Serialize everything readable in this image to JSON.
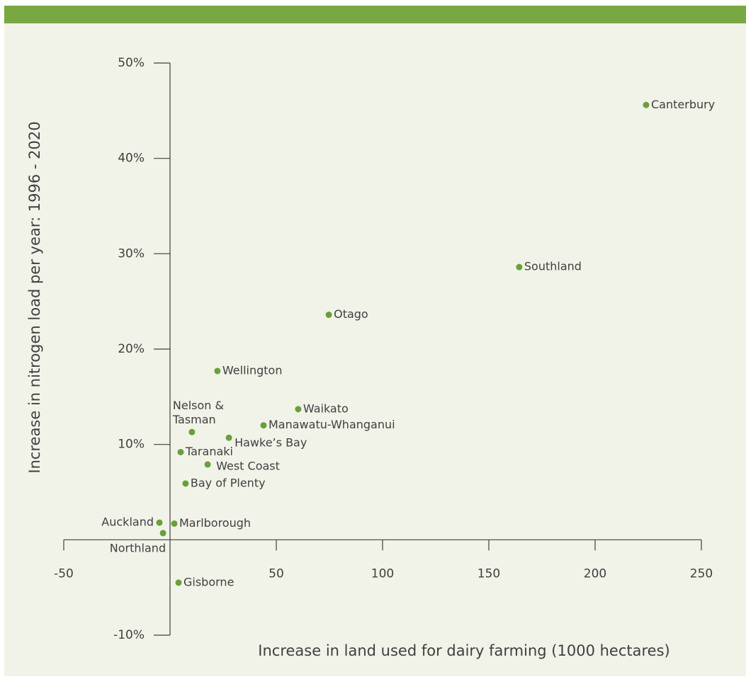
{
  "chart_data": {
    "type": "scatter",
    "x_label": "Increase in land used for dairy farming (1000 hectares)",
    "y_label": "Increase in nitrogen load per year: 1996 - 2020",
    "xlim": [
      -50,
      250
    ],
    "xticks": [
      -50,
      50,
      100,
      150,
      200,
      250
    ],
    "ylim": [
      -10,
      50
    ],
    "yticks": [
      {
        "value": -10,
        "label": "-10%"
      },
      {
        "value": 10,
        "label": "10%"
      },
      {
        "value": 20,
        "label": "20%"
      },
      {
        "value": 30,
        "label": "30%"
      },
      {
        "value": 40,
        "label": "40%"
      },
      {
        "value": 50,
        "label": "50%"
      }
    ],
    "color": "#6a9f3a",
    "labels": [
      "Canterbury",
      "Southland",
      "Otago",
      "Wellington",
      "Waikato",
      "Manawatu-Whanganui",
      "Nelson & Tasman",
      "Hawke’s Bay",
      "Taranaki",
      "West Coast",
      "Bay of Plenty",
      "Auckland",
      "Marlborough",
      "Northland",
      "Gisborne"
    ],
    "x": [
      224,
      164.3,
      74.7,
      22.3,
      60.3,
      44,
      10.3,
      27.7,
      5,
      17.7,
      7.3,
      -5,
      2,
      -3.3,
      4
    ],
    "y": [
      45.6,
      28.6,
      23.6,
      17.7,
      13.7,
      12.0,
      11.3,
      10.7,
      9.2,
      7.9,
      5.9,
      1.8,
      1.7,
      0.7,
      -4.5
    ]
  }
}
